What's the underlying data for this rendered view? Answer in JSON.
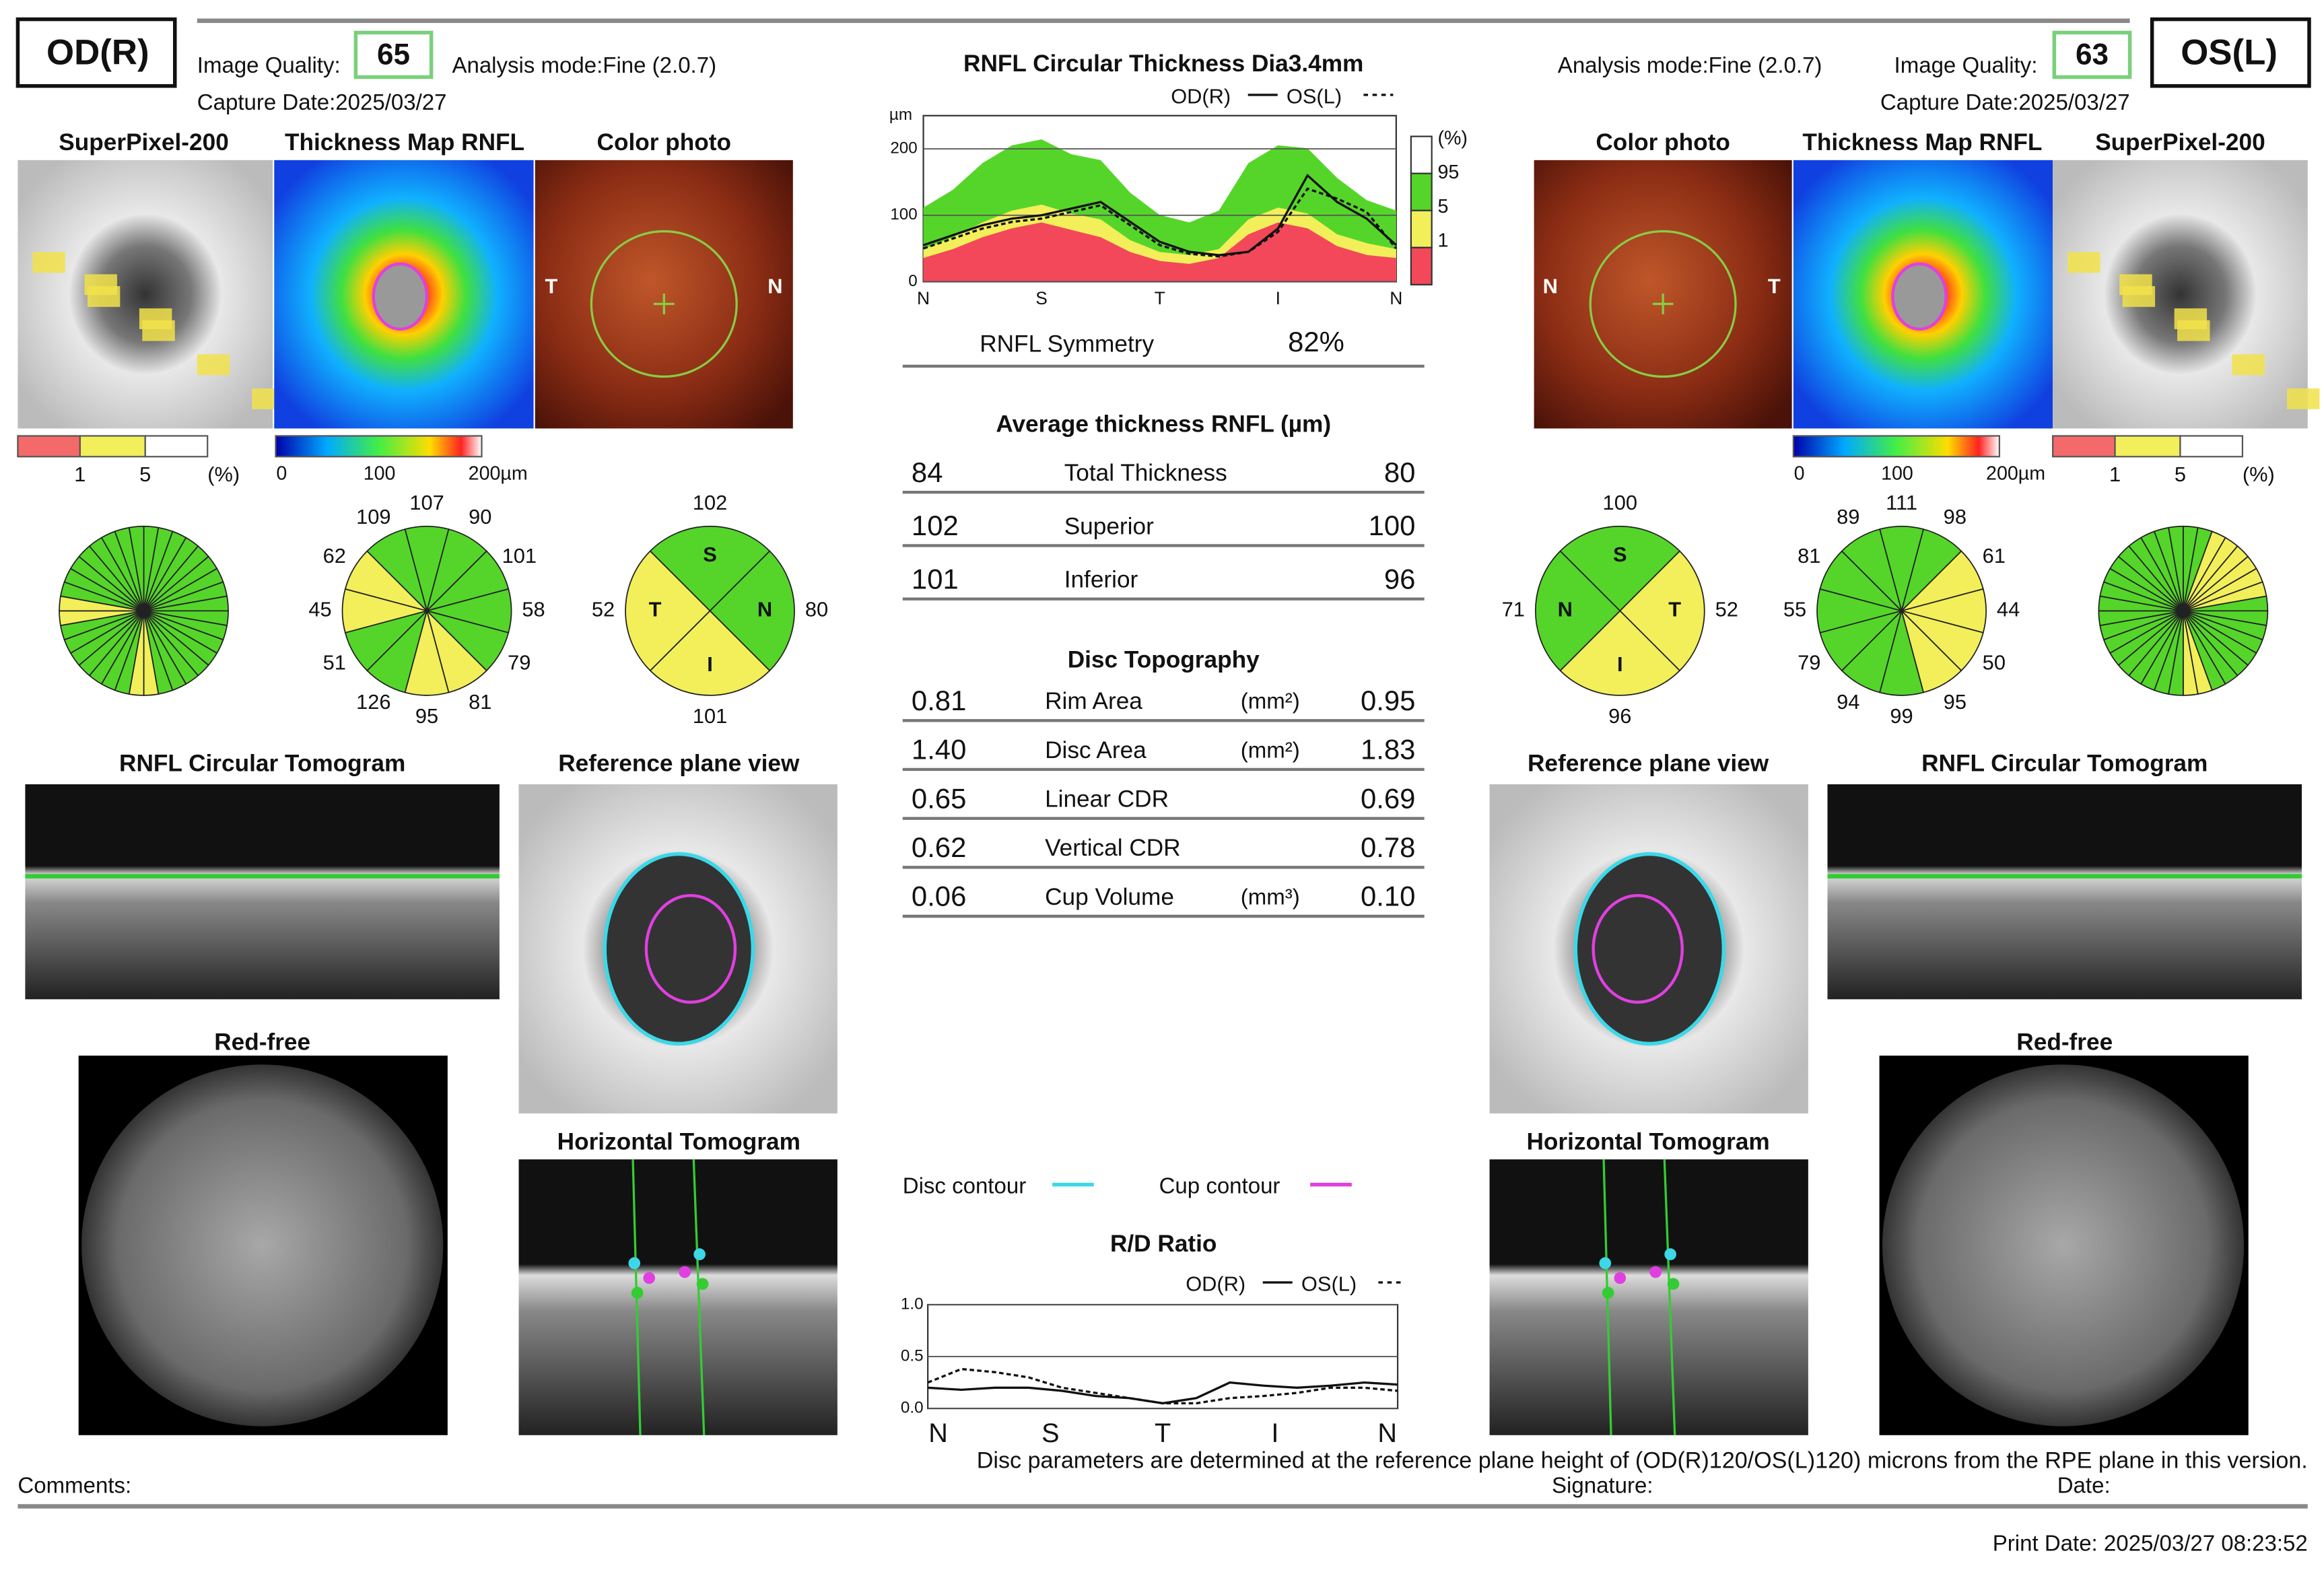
{
  "od": {
    "eye": "OD(R)",
    "quality_label": "Image Quality:",
    "quality": "65",
    "mode": "Analysis mode:Fine (2.0.7)",
    "capture": "Capture Date:2025/03/27"
  },
  "os": {
    "eye": "OS(L)",
    "quality_label": "Image Quality:",
    "quality": "63",
    "mode": "Analysis mode:Fine (2.0.7)",
    "capture": "Capture Date:2025/03/27"
  },
  "labels": {
    "superpixel": "SuperPixel-200",
    "thickness_map": "Thickness Map RNFL",
    "color_photo": "Color photo",
    "circ_tomogram": "RNFL Circular Tomogram",
    "ref_plane": "Reference plane view",
    "red_free": "Red-free",
    "horiz_tomogram": "Horizontal Tomogram"
  },
  "od_photo_letters": [
    "T",
    "N"
  ],
  "os_photo_letters": [
    "N",
    "T"
  ],
  "pct_scale": [
    "1",
    "5",
    "(%)"
  ],
  "thickness_scale": [
    "0",
    "100",
    "200µm"
  ],
  "od_clock": {
    "values": [
      107,
      90,
      101,
      58,
      79,
      81,
      95,
      126,
      51,
      45,
      62,
      109
    ],
    "colors": [
      "#55d52a",
      "#55d52a",
      "#55d52a",
      "#55d52a",
      "#55d52a",
      "#f2ef5a",
      "#f2ef5a",
      "#55d52a",
      "#55d52a",
      "#f2ef5a",
      "#f2ef5a",
      "#55d52a"
    ]
  },
  "od_quadrant": {
    "letters": [
      "S",
      "N",
      "I",
      "T"
    ],
    "values": [
      102,
      80,
      101,
      52
    ],
    "colors": [
      "#55d52a",
      "#55d52a",
      "#f2ef5a",
      "#f2ef5a"
    ]
  },
  "os_clock": {
    "values": [
      111,
      98,
      61,
      44,
      50,
      95,
      99,
      94,
      79,
      55,
      81,
      89
    ],
    "colors": [
      "#55d52a",
      "#55d52a",
      "#f2ef5a",
      "#f2ef5a",
      "#f2ef5a",
      "#f2ef5a",
      "#55d52a",
      "#55d52a",
      "#55d52a",
      "#55d52a",
      "#55d52a",
      "#55d52a"
    ]
  },
  "os_quadrant": {
    "letters": [
      "S",
      "T",
      "I",
      "N"
    ],
    "values": [
      100,
      52,
      96,
      71
    ],
    "colors": [
      "#55d52a",
      "#f2ef5a",
      "#f2ef5a",
      "#55d52a"
    ]
  },
  "rnfl_chart": {
    "title": "RNFL Circular Thickness Dia3.4mm",
    "legend": [
      "OD(R)",
      "OS(L)"
    ],
    "unit": "µm",
    "ylim": [
      0,
      250
    ],
    "yticks": [
      0,
      100,
      200
    ],
    "xlabels": [
      "N",
      "S",
      "T",
      "I",
      "N"
    ],
    "percentile_title": "(%)",
    "percentiles": [
      "95",
      "5",
      "1"
    ],
    "od": [
      55,
      70,
      85,
      95,
      100,
      110,
      120,
      90,
      60,
      45,
      40,
      45,
      80,
      160,
      120,
      95,
      55
    ],
    "os": [
      50,
      65,
      80,
      90,
      95,
      105,
      115,
      85,
      55,
      42,
      38,
      45,
      75,
      140,
      125,
      105,
      50
    ]
  },
  "symmetry": {
    "label": "RNFL Symmetry",
    "value": "82%"
  },
  "avg_thickness": {
    "title": "Average thickness RNFL (µm)",
    "rows": [
      {
        "od": "84",
        "name": "Total Thickness",
        "os": "80"
      },
      {
        "od": "102",
        "name": "Superior",
        "os": "100"
      },
      {
        "od": "101",
        "name": "Inferior",
        "os": "96"
      }
    ]
  },
  "disc": {
    "title": "Disc Topography",
    "rows": [
      {
        "od": "0.81",
        "name": "Rim Area",
        "unit": "(mm²)",
        "os": "0.95"
      },
      {
        "od": "1.40",
        "name": "Disc Area",
        "unit": "(mm²)",
        "os": "1.83"
      },
      {
        "od": "0.65",
        "name": "Linear CDR",
        "os": "0.69"
      },
      {
        "od": "0.62",
        "name": "Vertical CDR",
        "os": "0.78"
      },
      {
        "od": "0.06",
        "name": "Cup Volume",
        "unit": "(mm³)",
        "os": "0.10"
      }
    ]
  },
  "contour_legend": [
    "Disc contour",
    "Cup contour"
  ],
  "rd_chart": {
    "title": "R/D Ratio",
    "legend": [
      "OD(R)",
      "OS(L)"
    ],
    "ylim": [
      0,
      1
    ],
    "yticks": [
      {
        "value": 1,
        "label": "1.0"
      },
      {
        "value": 0.5,
        "label": "0.5"
      },
      {
        "value": 0,
        "label": "0.0"
      }
    ],
    "xlabels": [
      "N",
      "S",
      "T",
      "I",
      "N"
    ],
    "od": [
      0.2,
      0.18,
      0.2,
      0.2,
      0.17,
      0.12,
      0.1,
      0.05,
      0.1,
      0.25,
      0.22,
      0.2,
      0.22,
      0.25,
      0.23
    ],
    "os": [
      0.25,
      0.38,
      0.35,
      0.3,
      0.2,
      0.15,
      0.1,
      0.05,
      0.05,
      0.1,
      0.12,
      0.15,
      0.2,
      0.2,
      0.17
    ]
  },
  "footer": {
    "note": "Disc parameters are determined at the reference plane height of (OD(R)120/OS(L)120) microns from the RPE plane in this version.",
    "comments": "Comments:",
    "signature": "Signature:",
    "date": "Date:",
    "print_date": "Print Date: 2025/03/27 08:23:52"
  }
}
